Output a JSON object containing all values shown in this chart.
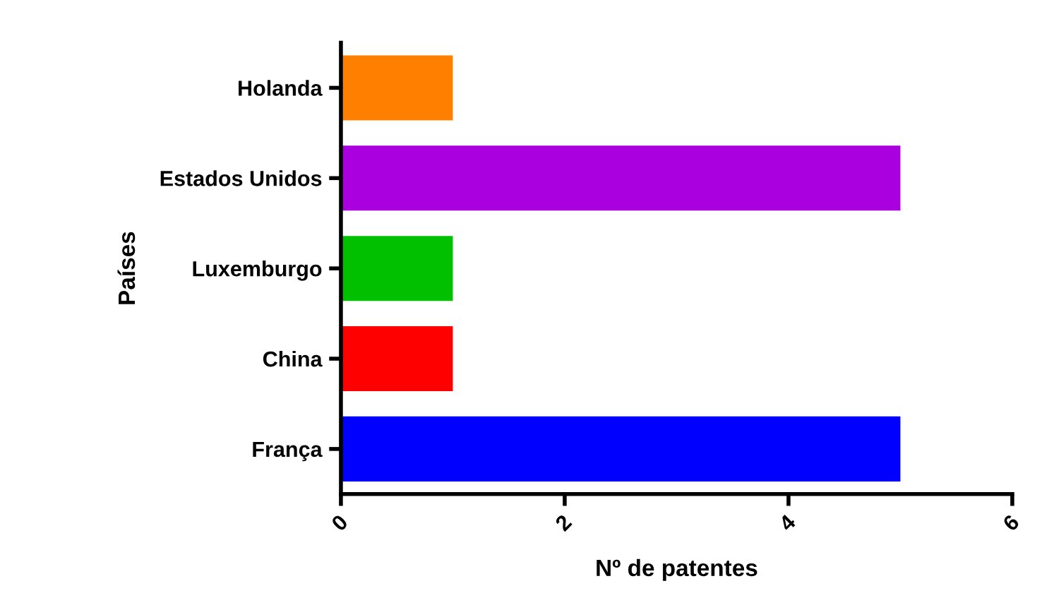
{
  "chart_data": {
    "type": "bar",
    "orientation": "horizontal",
    "categories": [
      "Holanda",
      "Estados Unidos",
      "Luxemburgo",
      "China",
      "França"
    ],
    "values": [
      1,
      5,
      1,
      1,
      5
    ],
    "colors": [
      "#ff8000",
      "#aa00e0",
      "#00c000",
      "#ff0000",
      "#0000ff"
    ],
    "xlim": [
      0,
      6
    ],
    "xticks": [
      0,
      2,
      4,
      6
    ],
    "xlabel": "Nº de patentes",
    "ylabel": "Países",
    "grid": false
  }
}
